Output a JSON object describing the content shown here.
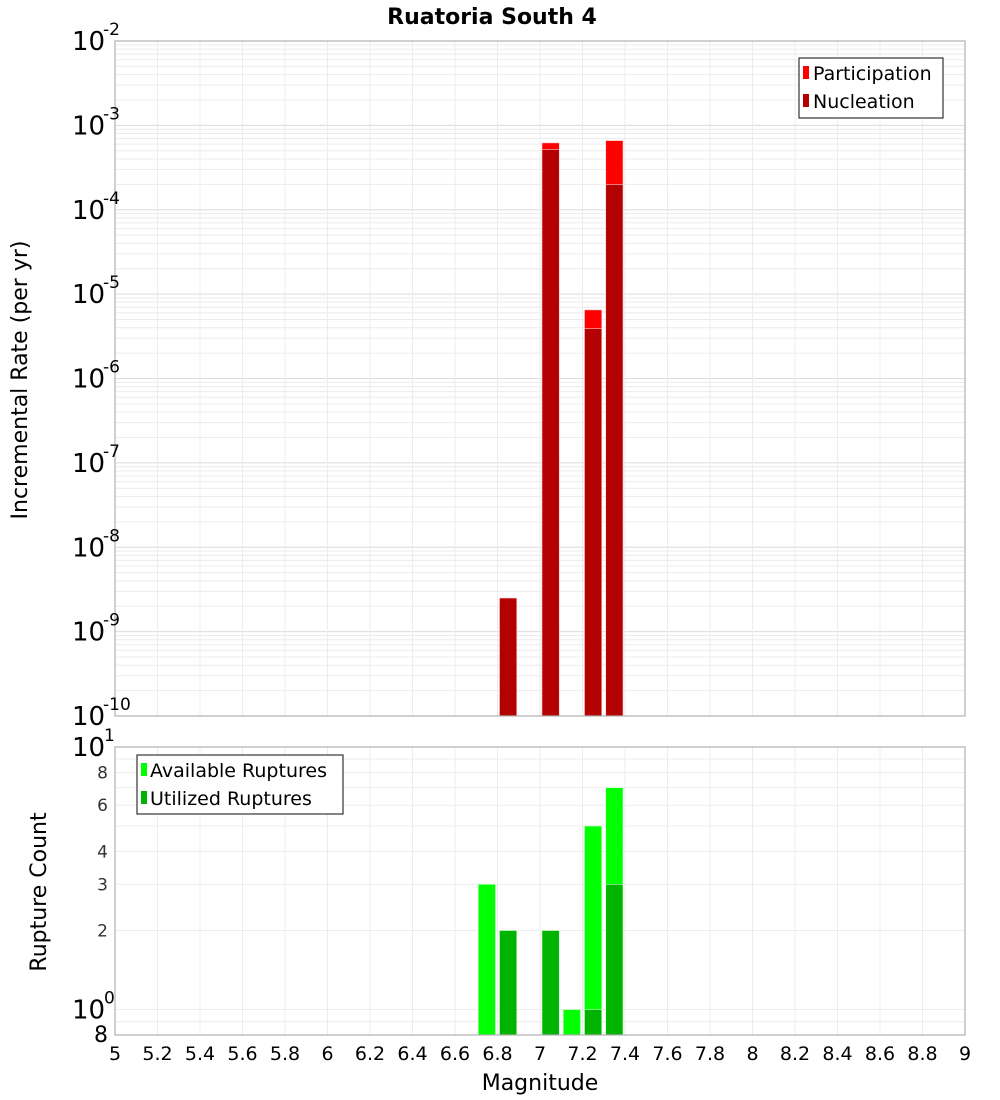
{
  "chart_data": [
    {
      "type": "bar",
      "title": "Ruatoria South 4",
      "xlabel": "Magnitude",
      "ylabel": "Incremental Rate (per yr)",
      "yscale": "log",
      "xlim": [
        5,
        9
      ],
      "ylim": [
        1e-10,
        0.01
      ],
      "grid": true,
      "legend_position": "top-right",
      "x_ticks": [
        "5",
        "5.2",
        "5.4",
        "5.6",
        "5.8",
        "6",
        "6.2",
        "6.4",
        "6.6",
        "6.8",
        "7",
        "7.2",
        "7.4",
        "7.6",
        "7.8",
        "8",
        "8.2",
        "8.4",
        "8.6",
        "8.8",
        "9"
      ],
      "y_tick_exponents": [
        -2,
        -3,
        -4,
        -5,
        -6,
        -7,
        -8,
        -9,
        -10
      ],
      "bin_width": 0.1,
      "series": [
        {
          "name": "Participation",
          "color": "#ff0000",
          "x": [
            6.85,
            7.05,
            7.25,
            7.35
          ],
          "values": [
            2.5e-09,
            0.00062,
            6.5e-06,
            0.00066
          ]
        },
        {
          "name": "Nucleation",
          "color": "#b30000",
          "x": [
            6.85,
            7.05,
            7.25,
            7.35
          ],
          "values": [
            2.5e-09,
            0.00052,
            3.9e-06,
            0.0002
          ]
        }
      ]
    },
    {
      "type": "bar",
      "title": "",
      "xlabel": "Magnitude",
      "ylabel": "Rupture Count",
      "yscale": "log",
      "xlim": [
        5,
        9
      ],
      "ylim": [
        0.8,
        10
      ],
      "grid": true,
      "legend_position": "top-left",
      "y_ticks_major": [
        {
          "base": "10",
          "exp": "1",
          "value": 10
        },
        {
          "base": "10",
          "exp": "0",
          "value": 1
        }
      ],
      "y_ticks_minor": [
        {
          "label": "8",
          "value": 8
        },
        {
          "label": "6",
          "value": 6
        },
        {
          "label": "4",
          "value": 4
        },
        {
          "label": "3",
          "value": 3
        },
        {
          "label": "2",
          "value": 2
        },
        {
          "label": "8",
          "value": 0.8
        }
      ],
      "bin_width": 0.1,
      "series": [
        {
          "name": "Available Ruptures",
          "color": "#00ff00",
          "x": [
            6.75,
            7.15,
            7.25,
            7.35
          ],
          "values": [
            3,
            1,
            5,
            7
          ]
        },
        {
          "name": "Utilized Ruptures",
          "color": "#00b300",
          "x": [
            6.85,
            7.05,
            7.25,
            7.35
          ],
          "values": [
            2,
            2,
            1,
            3
          ]
        }
      ]
    }
  ],
  "labels": {
    "title": "Ruatoria South 4",
    "top_ylabel": "Incremental Rate (per yr)",
    "bottom_ylabel": "Rupture Count",
    "xlabel": "Magnitude",
    "legend_top": [
      "Participation",
      "Nucleation"
    ],
    "legend_bottom": [
      "Available Ruptures",
      "Utilized Ruptures"
    ]
  }
}
